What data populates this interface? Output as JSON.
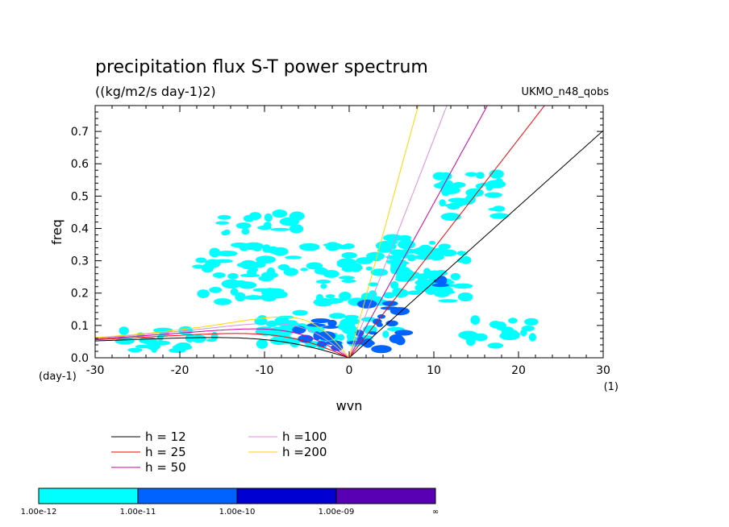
{
  "chart_data": {
    "type": "contour",
    "title": "precipitation flux S-T power spectrum",
    "subtitle": "((kg/m2/s day-1)2)",
    "source_label": "UKMO_n48_qobs",
    "xlabel": "wvn",
    "ylabel": "freq",
    "x_unit": "(1)",
    "y_unit": "(day-1)",
    "xlim": [
      -30,
      30
    ],
    "ylim": [
      0,
      0.78
    ],
    "x_ticks": [
      -30,
      -20,
      -10,
      0,
      10,
      20,
      30
    ],
    "y_ticks": [
      0.0,
      0.1,
      0.2,
      0.3,
      0.4,
      0.5,
      0.6,
      0.7
    ],
    "x_tick_labels": [
      "-30",
      "-20",
      "-10",
      "0",
      "10",
      "20",
      "30"
    ],
    "y_tick_labels": [
      "0.0",
      "0.1",
      "0.2",
      "0.3",
      "0.4",
      "0.5",
      "0.6",
      "0.7"
    ],
    "dispersion_curves": [
      {
        "name": "h = 12",
        "h": 12,
        "color": "#000000"
      },
      {
        "name": "h = 25",
        "h": 25,
        "color": "#ff0000"
      },
      {
        "name": "h = 50",
        "h": 50,
        "color": "#d3009c"
      },
      {
        "name": "h =100",
        "h": 100,
        "color": "#de8cd9"
      },
      {
        "name": "h =200",
        "h": 200,
        "color": "#ffd400"
      }
    ],
    "colorbar": {
      "levels": [
        "1.00e-12",
        "1.00e-11",
        "1.00e-10",
        "1.00e-09",
        "∞"
      ],
      "colors": [
        "#00ffff",
        "#0063ff",
        "#0000d2",
        "#5a00b4"
      ]
    },
    "contour_regions": [
      {
        "level": 1,
        "x": [
          -12,
          6
        ],
        "y": [
          0.03,
          0.14
        ]
      },
      {
        "level": 1,
        "x": [
          -18,
          12
        ],
        "y": [
          0.17,
          0.35
        ]
      },
      {
        "level": 1,
        "x": [
          -15,
          -5
        ],
        "y": [
          0.38,
          0.45
        ]
      },
      {
        "level": 1,
        "x": [
          5,
          14
        ],
        "y": [
          0.18,
          0.38
        ]
      },
      {
        "level": 1,
        "x": [
          14,
          22
        ],
        "y": [
          0.03,
          0.12
        ]
      },
      {
        "level": 1,
        "x": [
          -28,
          -15
        ],
        "y": [
          0.02,
          0.09
        ]
      },
      {
        "level": 1,
        "x": [
          10,
          18
        ],
        "y": [
          0.43,
          0.58
        ]
      },
      {
        "level": 2,
        "x": [
          -7,
          -1
        ],
        "y": [
          0.04,
          0.12
        ]
      },
      {
        "level": 2,
        "x": [
          1,
          7
        ],
        "y": [
          0.05,
          0.17
        ]
      },
      {
        "level": 2,
        "x": [
          8,
          11
        ],
        "y": [
          0.22,
          0.25
        ]
      },
      {
        "level": 2,
        "x": [
          -2,
          4
        ],
        "y": [
          0.015,
          0.06
        ]
      }
    ]
  }
}
